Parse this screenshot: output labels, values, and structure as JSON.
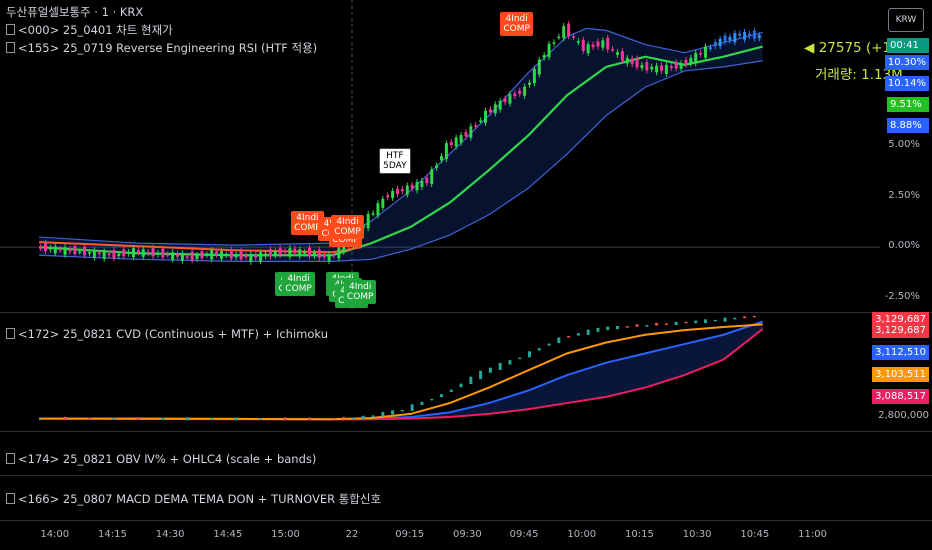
{
  "header": {
    "symbol_line": "두산퓨얼셀보통주 · 1 · KRX",
    "indicator1": "&lt;000&gt; 25_0401 차트 현재가",
    "indicator2": "&lt;155&gt; 25_0719 Reverse Engineering RSI (HTF 적용)"
  },
  "currency_button": "KRW",
  "price_readout": {
    "last": "27575 (+11.1",
    "volume": "거래량: 1.13M"
  },
  "main_scale": {
    "ticks": [
      {
        "label": "5.00%",
        "v": 5.0
      },
      {
        "label": "2.50%",
        "v": 2.5
      },
      {
        "label": "0.00%",
        "v": 0.0
      },
      {
        "label": "-2.50%",
        "v": -2.5
      }
    ],
    "tags": [
      {
        "label": "00:41",
        "color": "#089981"
      },
      {
        "label": "10.30%",
        "color": "#2962ff"
      },
      {
        "label": "10.14%",
        "color": "#2962ff"
      },
      {
        "label": "9.51%",
        "color": "#22c022"
      },
      {
        "label": "8.88%",
        "color": "#2962ff"
      }
    ]
  },
  "badges": [
    {
      "text": "4Indi COMP",
      "color": "red",
      "t": 13.5,
      "v": 1.2
    },
    {
      "text": "4Indi COMP",
      "color": "red",
      "t": 14.9,
      "v": 0.9
    },
    {
      "text": "4Indi COMP",
      "color": "red",
      "t": 15.45,
      "v": 0.6
    },
    {
      "text": "4Indi COMP",
      "color": "red",
      "t": 15.55,
      "v": 1.0
    },
    {
      "text": "4Indi COMP",
      "color": "red",
      "t": 24.2,
      "v": 11.0
    },
    {
      "text": "4Indi COMP",
      "color": "green",
      "t": 12.7,
      "v": -1.8
    },
    {
      "text": "4Indi COMP",
      "color": "green",
      "t": 13.05,
      "v": -1.8
    },
    {
      "text": "4Indi COMP",
      "color": "green",
      "t": 15.3,
      "v": -1.8
    },
    {
      "text": "4Indi COMP",
      "color": "green",
      "t": 15.45,
      "v": -2.1
    },
    {
      "text": "4Indi COMP",
      "color": "green",
      "t": 15.75,
      "v": -2.4
    },
    {
      "text": "4Indi COMP",
      "color": "green",
      "t": 16.2,
      "v": -2.2
    },
    {
      "text": "HTF 5DAY",
      "color": "white",
      "t": 18.0,
      "v": 4.3
    }
  ],
  "cvd_pane": {
    "title": "&lt;172&gt; 25_0821 CVD (Continuous + MTF) + Ichimoku",
    "ticks": [
      {
        "label": "2,800,000",
        "v": 2800000
      }
    ],
    "tags": [
      {
        "label": "3,129,687",
        "color": "#f23645"
      },
      {
        "label": "3,129,687",
        "color": "#f23645"
      },
      {
        "label": "3,112,510",
        "color": "#2962ff"
      },
      {
        "label": "3,103,511",
        "color": "#ff9800"
      },
      {
        "label": "3,088,517",
        "color": "#e91e63"
      }
    ]
  },
  "obv_pane": {
    "title": "&lt;174&gt; 25_0821 OBV Ⅳ% + OHLC4 (scale + bands)"
  },
  "macd_pane": {
    "title": "&lt;166&gt; 25_0807 MACD DEMA TEMA DON + TURNOVER 통합신호"
  },
  "time_axis": [
    {
      "label": "14:00",
      "t": 0.8
    },
    {
      "label": "14:15",
      "t": 3.75
    },
    {
      "label": "14:30",
      "t": 6.7
    },
    {
      "label": "14:45",
      "t": 9.65
    },
    {
      "label": "15:00",
      "t": 12.6
    },
    {
      "label": "22",
      "t": 16.0
    },
    {
      "label": "09:15",
      "t": 18.95
    },
    {
      "label": "09:30",
      "t": 21.9
    },
    {
      "label": "09:45",
      "t": 24.8
    },
    {
      "label": "10:00",
      "t": 27.75
    },
    {
      "label": "10:15",
      "t": 30.7
    },
    {
      "label": "10:30",
      "t": 33.65
    },
    {
      "label": "10:45",
      "t": 36.6
    },
    {
      "label": "11:00",
      "t": 39.55
    }
  ],
  "chart_data": {
    "type": "line",
    "title": "",
    "x_unit": "5-minute bars (approx index)",
    "ylim": [
      -3.2,
      12.2
    ],
    "price_series": {
      "name": "",
      "t": [
        0,
        1,
        2,
        3,
        4,
        5,
        6,
        7,
        8,
        9,
        10,
        11,
        12,
        13,
        14,
        15,
        16,
        17,
        18,
        19,
        20,
        21,
        22,
        23,
        24,
        25,
        26,
        27,
        28,
        29,
        30,
        31,
        32,
        33,
        34,
        35,
        36,
        37
      ],
      "v": [
        0.0,
        -0.1,
        -0.2,
        -0.3,
        -0.4,
        -0.2,
        -0.3,
        -0.4,
        -0.5,
        -0.3,
        -0.4,
        -0.5,
        -0.3,
        -0.2,
        -0.3,
        -0.5,
        0.2,
        1.5,
        2.6,
        2.9,
        3.3,
        5.0,
        5.6,
        6.6,
        7.3,
        7.8,
        9.6,
        10.8,
        9.8,
        10.1,
        9.3,
        8.9,
        8.8,
        9.0,
        9.6,
        10.2,
        10.5,
        10.4
      ]
    },
    "ma_fast": {
      "name": "",
      "t": [
        0,
        5,
        10,
        15,
        17,
        19,
        21,
        23,
        25,
        27,
        29,
        31,
        33,
        35,
        37
      ],
      "v": [
        0.0,
        -0.3,
        -0.4,
        -0.4,
        0.2,
        1.0,
        2.2,
        3.8,
        5.5,
        7.5,
        8.9,
        9.4,
        9.0,
        9.4,
        9.9
      ]
    },
    "band_upper": {
      "name": "",
      "t": [
        0,
        5,
        10,
        15,
        17,
        19,
        21,
        23,
        25,
        27,
        28,
        29,
        31,
        33,
        35,
        37
      ],
      "v": [
        0.5,
        0.2,
        0.1,
        0.2,
        1.3,
        2.8,
        4.6,
        6.5,
        8.6,
        10.4,
        10.8,
        10.7,
        10.0,
        9.6,
        10.1,
        10.6
      ]
    },
    "band_lower": {
      "name": "",
      "t": [
        0,
        5,
        10,
        15,
        17,
        19,
        21,
        23,
        25,
        27,
        29,
        31,
        33,
        35,
        37
      ],
      "v": [
        -0.4,
        -0.6,
        -0.7,
        -0.7,
        -0.6,
        -0.1,
        0.6,
        1.6,
        2.9,
        4.6,
        6.5,
        7.9,
        8.7,
        8.9,
        9.2
      ]
    },
    "cvd": {
      "t": [
        0,
        5,
        10,
        15,
        17,
        19,
        21,
        23,
        25,
        27,
        29,
        31,
        33,
        35,
        37
      ],
      "line": [
        2800000,
        2800000,
        2800000,
        2798000,
        2805000,
        2830000,
        2880000,
        2950000,
        3000000,
        3060000,
        3090000,
        3100000,
        3108000,
        3118000,
        3129687
      ],
      "orange": [
        2800000,
        2800000,
        2799000,
        2798000,
        2802000,
        2815000,
        2850000,
        2900000,
        2955000,
        3010000,
        3045000,
        3070000,
        3085000,
        3095000,
        3103511
      ],
      "cloud_top": [
        2800000,
        2800000,
        2799000,
        2798000,
        2800000,
        2805000,
        2820000,
        2850000,
        2890000,
        2940000,
        2980000,
        3010000,
        3040000,
        3070000,
        3112510
      ],
      "cloud_bottom": [
        2800000,
        2799000,
        2798000,
        2797000,
        2798000,
        2800000,
        2805000,
        2815000,
        2830000,
        2850000,
        2870000,
        2900000,
        2940000,
        2990000,
        3088517
      ],
      "ylim": [
        2760000,
        3140000
      ]
    }
  }
}
